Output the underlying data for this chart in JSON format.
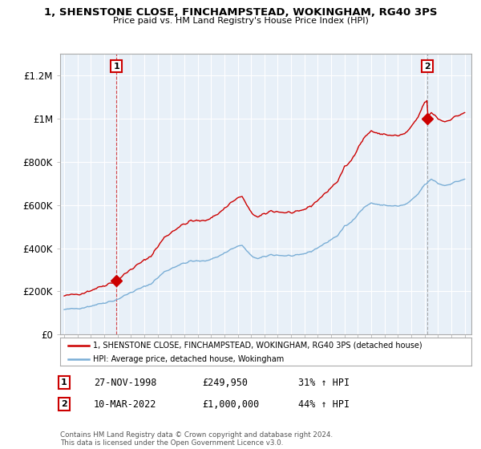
{
  "title": "1, SHENSTONE CLOSE, FINCHAMPSTEAD, WOKINGHAM, RG40 3PS",
  "subtitle": "Price paid vs. HM Land Registry's House Price Index (HPI)",
  "ylabel_ticks": [
    "£0",
    "£200K",
    "£400K",
    "£600K",
    "£800K",
    "£1M",
    "£1.2M"
  ],
  "ytick_values": [
    0,
    200000,
    400000,
    600000,
    800000,
    1000000,
    1200000
  ],
  "ylim": [
    0,
    1300000
  ],
  "xlim_start": 1994.7,
  "xlim_end": 2025.5,
  "sale1_date": 1998.91,
  "sale1_price": 249950,
  "sale2_date": 2022.19,
  "sale2_price": 1000000,
  "red_line_color": "#cc0000",
  "blue_line_color": "#7aaed6",
  "plot_bg_color": "#e8f0f8",
  "legend_line1": "1, SHENSTONE CLOSE, FINCHAMPSTEAD, WOKINGHAM, RG40 3PS (detached house)",
  "legend_line2": "HPI: Average price, detached house, Wokingham",
  "table_row1_date": "27-NOV-1998",
  "table_row1_price": "£249,950",
  "table_row1_hpi": "31% ↑ HPI",
  "table_row2_date": "10-MAR-2022",
  "table_row2_price": "£1,000,000",
  "table_row2_hpi": "44% ↑ HPI",
  "footnote": "Contains HM Land Registry data © Crown copyright and database right 2024.\nThis data is licensed under the Open Government Licence v3.0.",
  "grid_color": "#ffffff",
  "box_edge_color": "#cc0000"
}
